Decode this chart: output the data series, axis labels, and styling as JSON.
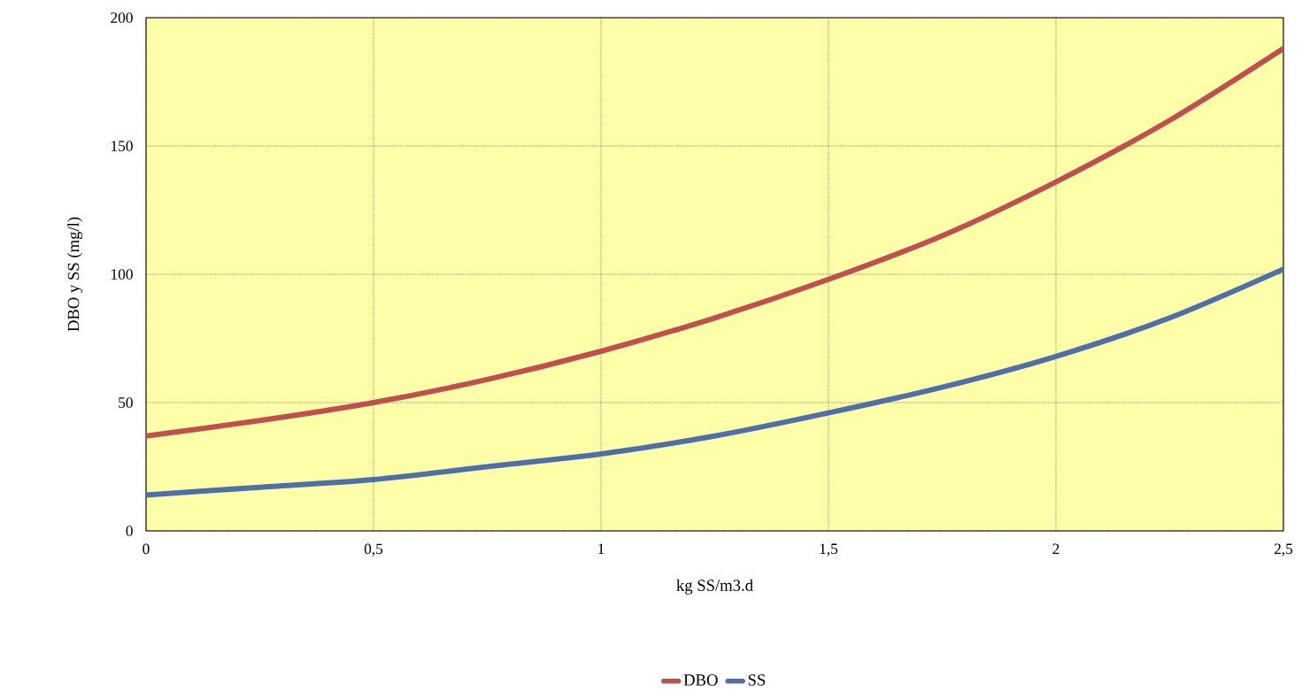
{
  "chart_data": {
    "type": "line",
    "xlabel": "kg SS/m3.d",
    "ylabel": "DBO y SS (mg/l)",
    "x": [
      0,
      0.25,
      0.5,
      0.75,
      1,
      1.25,
      1.5,
      1.75,
      2,
      2.25,
      2.5
    ],
    "series": [
      {
        "name": "DBO",
        "color": "#c0504d",
        "values": [
          37,
          43,
          50,
          59,
          70,
          83,
          98,
          115,
          136,
          160,
          188
        ]
      },
      {
        "name": "SS",
        "color": "#4f6fa8",
        "values": [
          14,
          17,
          20,
          25,
          30,
          37,
          46,
          56,
          68,
          83,
          102
        ]
      }
    ],
    "xlim": [
      0,
      2.5
    ],
    "ylim": [
      0,
      200
    ],
    "xticks": [
      0,
      {
        "value": 0.5,
        "label": "0,5"
      },
      1,
      {
        "value": 1.5,
        "label": "1,5"
      },
      2,
      {
        "value": 2.5,
        "label": "2,5"
      }
    ],
    "yticks": [
      0,
      50,
      100,
      150,
      200
    ],
    "grid": true,
    "legend": "bottom",
    "marker": "none",
    "line_style": "solid"
  }
}
